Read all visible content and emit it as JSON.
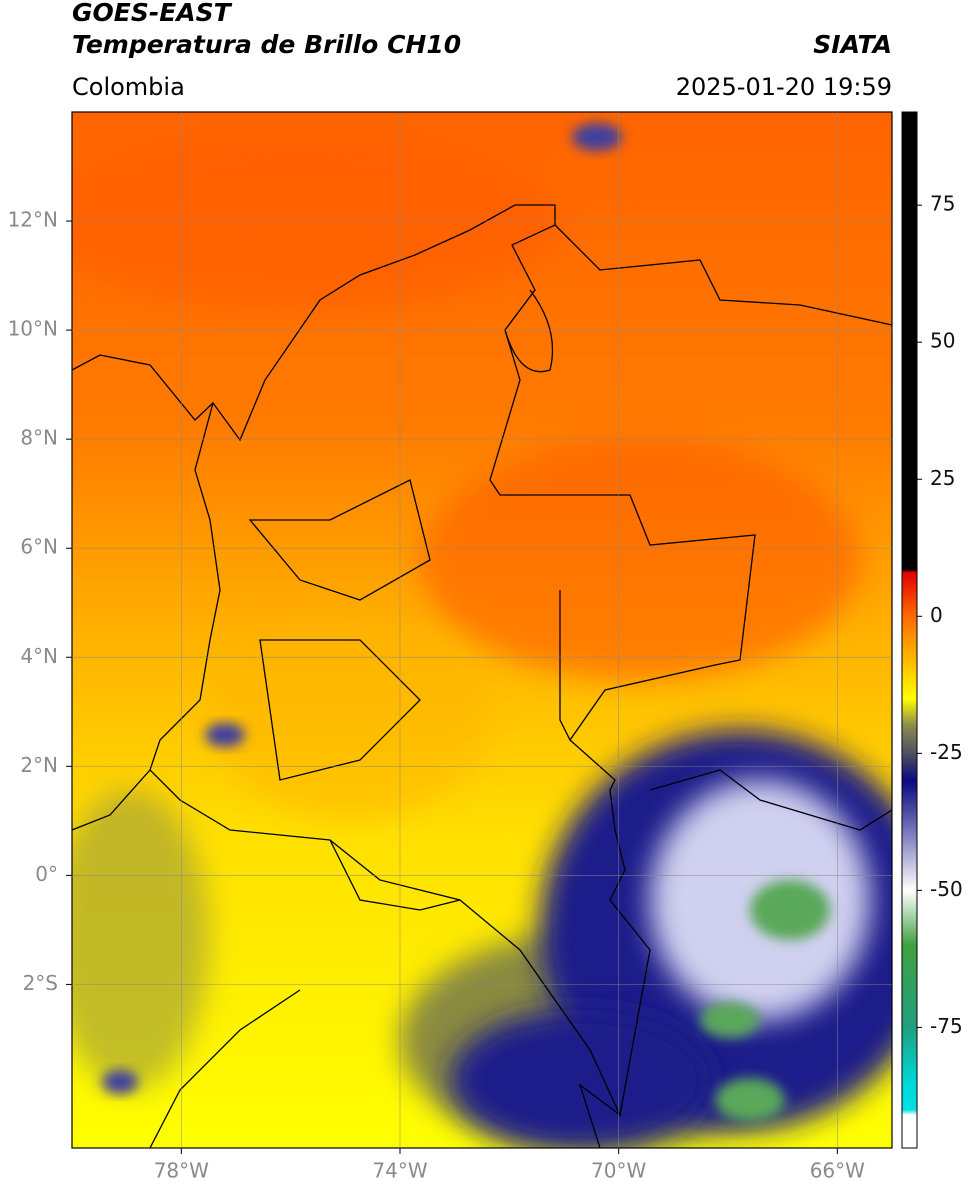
{
  "header": {
    "title": "GOES-EAST",
    "subtitle": "Temperatura de Brillo CH10",
    "region": "Colombia",
    "source": "SIATA",
    "timestamp": "2025-01-20 19:59"
  },
  "map": {
    "lon_range": [
      -80,
      -65
    ],
    "lat_range": [
      -5,
      14
    ],
    "lon_ticks": [
      {
        "value": -78,
        "label": "78°W"
      },
      {
        "value": -74,
        "label": "74°W"
      },
      {
        "value": -70,
        "label": "70°W"
      },
      {
        "value": -66,
        "label": "66°W"
      }
    ],
    "lat_ticks": [
      {
        "value": 12,
        "label": "12°N"
      },
      {
        "value": 10,
        "label": "10°N"
      },
      {
        "value": 8,
        "label": "8°N"
      },
      {
        "value": 6,
        "label": "6°N"
      },
      {
        "value": 4,
        "label": "4°N"
      },
      {
        "value": 2,
        "label": "2°N"
      },
      {
        "value": 0,
        "label": "0°"
      },
      {
        "value": -2,
        "label": "2°S"
      }
    ],
    "grid": true
  },
  "colorbar": {
    "range": [
      -97,
      92
    ],
    "ticks": [
      75,
      50,
      25,
      0,
      -25,
      -50,
      -75
    ],
    "stops": [
      {
        "value": 92,
        "color": "#000000"
      },
      {
        "value": 8.5,
        "color": "#000000"
      },
      {
        "value": 8,
        "color": "#e00000"
      },
      {
        "value": 0,
        "color": "#ff6a00"
      },
      {
        "value": -15,
        "color": "#ffff00"
      },
      {
        "value": -20,
        "color": "#8a8a50"
      },
      {
        "value": -25,
        "color": "#505060"
      },
      {
        "value": -30,
        "color": "#0a0a80"
      },
      {
        "value": -40,
        "color": "#8080c0"
      },
      {
        "value": -50,
        "color": "#ffffff"
      },
      {
        "value": -60,
        "color": "#40a040"
      },
      {
        "value": -75,
        "color": "#20a080"
      },
      {
        "value": -85,
        "color": "#00d8d8"
      },
      {
        "value": -90,
        "color": "#00e0e0"
      },
      {
        "value": -91,
        "color": "#ffffff"
      },
      {
        "value": -97,
        "color": "#ffffff"
      }
    ]
  }
}
